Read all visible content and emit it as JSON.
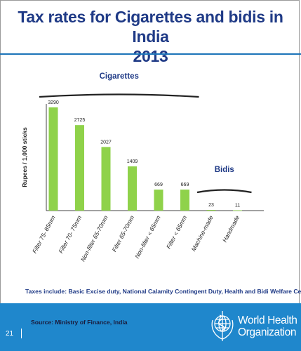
{
  "slide": {
    "title_line1": "Tax rates for Cigarettes and bidis in India",
    "title_line2": "2013",
    "footnote": "Taxes include: Basic Excise duty, National Calamity Contingent Duty, Health and Bidi Welfare Cess",
    "source": "Source:  Ministry of Finance, India",
    "slide_number": "21",
    "org_name_line1": "World Health",
    "org_name_line2": "Organization",
    "colors": {
      "title": "#1f3a86",
      "bar": "#8fd24a",
      "footer": "#1f87cc"
    }
  },
  "chart_data": {
    "type": "bar",
    "ylabel": "Rupees / 1,000 sticks",
    "xlabel": "",
    "categories": [
      "Filter 75- 85mm",
      "Filter 70- 75mm",
      "Non-filter 65-70mm",
      "Filter  65-70mm",
      "Non-filter < 65mm",
      "Filter < 65mm",
      "Machine-made",
      "Handmade"
    ],
    "values": [
      3290,
      2725,
      2027,
      1409,
      669,
      669,
      23,
      11
    ],
    "data_labels": [
      "3290",
      "2725",
      "2027",
      "1409",
      "669",
      "669",
      "23",
      "11"
    ],
    "ylim": [
      0,
      3400
    ],
    "grid": false,
    "groups": [
      {
        "label": "Cigarettes",
        "from": 0,
        "to": 5
      },
      {
        "label": "Bidis",
        "from": 6,
        "to": 7
      }
    ]
  }
}
